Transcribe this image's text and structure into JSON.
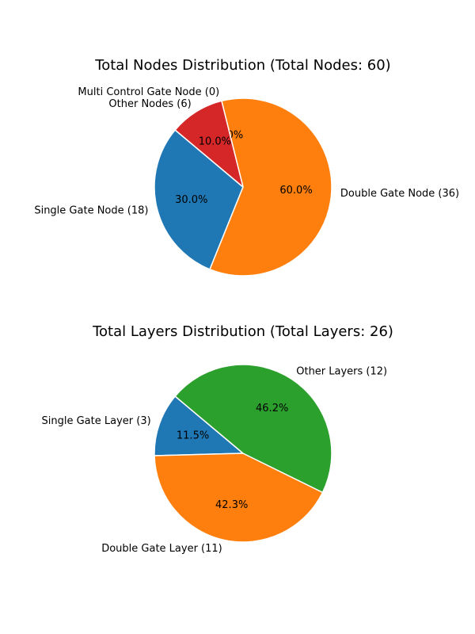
{
  "chart_data": [
    {
      "type": "pie",
      "title": "Total Nodes Distribution (Total Nodes: 60)",
      "slices": [
        {
          "label": "Single Gate Node (18)",
          "value": 18,
          "pct": "30.0%",
          "color": "#1f77b4"
        },
        {
          "label": "Double Gate Node (36)",
          "value": 36,
          "pct": "60.0%",
          "color": "#ff7f0e"
        },
        {
          "label": "Multi Control Gate Node (0)",
          "value": 0,
          "pct": "0.0%",
          "color": "#2ca02c"
        },
        {
          "label": "Other Nodes (6)",
          "value": 6,
          "pct": "10.0%",
          "color": "#d62728"
        }
      ]
    },
    {
      "type": "pie",
      "title": "Total Layers Distribution (Total Layers: 26)",
      "slices": [
        {
          "label": "Single Gate Layer (3)",
          "value": 3,
          "pct": "11.5%",
          "color": "#1f77b4"
        },
        {
          "label": "Double Gate Layer (11)",
          "value": 11,
          "pct": "42.3%",
          "color": "#ff7f0e"
        },
        {
          "label": "Other Layers (12)",
          "value": 12,
          "pct": "46.2%",
          "color": "#2ca02c"
        }
      ]
    }
  ]
}
